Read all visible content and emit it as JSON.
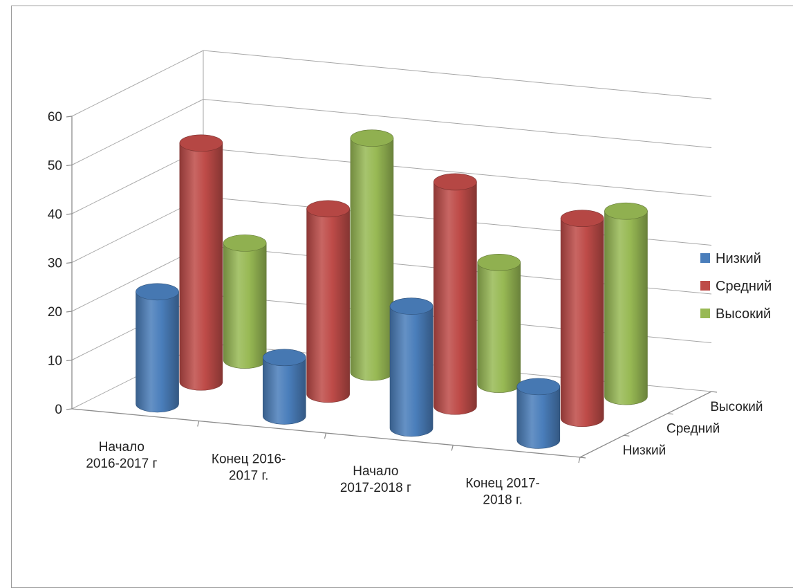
{
  "chart_data": {
    "type": "bar",
    "subtype": "3d-column",
    "categories": [
      "Начало 2016-2017 г",
      "Конец 2016-2017 г.",
      "Начало 2017-2018 г",
      "Конец 2017-2018 г."
    ],
    "category_lines": [
      [
        "Начало",
        "2016-2017 г"
      ],
      [
        "Конец 2016-",
        "2017 г."
      ],
      [
        "Начало",
        "2017-2018 г"
      ],
      [
        "Конец 2017-",
        "2018 г."
      ]
    ],
    "series": [
      {
        "name": "Низкий",
        "values": [
          23,
          12,
          25,
          11
        ],
        "color": "#4a7ebb"
      },
      {
        "name": "Средний",
        "values": [
          49,
          38,
          46,
          41
        ],
        "color": "#be4b48"
      },
      {
        "name": "Высокий",
        "values": [
          24,
          48,
          25,
          38
        ],
        "color": "#98b954"
      }
    ],
    "ylim": [
      0,
      60
    ],
    "yticks": [
      "0",
      "10",
      "20",
      "30",
      "40",
      "50",
      "60"
    ],
    "depth_labels": [
      "Низкий",
      "Средний",
      "Высокий"
    ],
    "legend": {
      "position": "right",
      "entries": [
        "Низкий",
        "Средний",
        "Высокий"
      ]
    },
    "grid": true,
    "title": "",
    "xlabel": "",
    "ylabel": ""
  }
}
